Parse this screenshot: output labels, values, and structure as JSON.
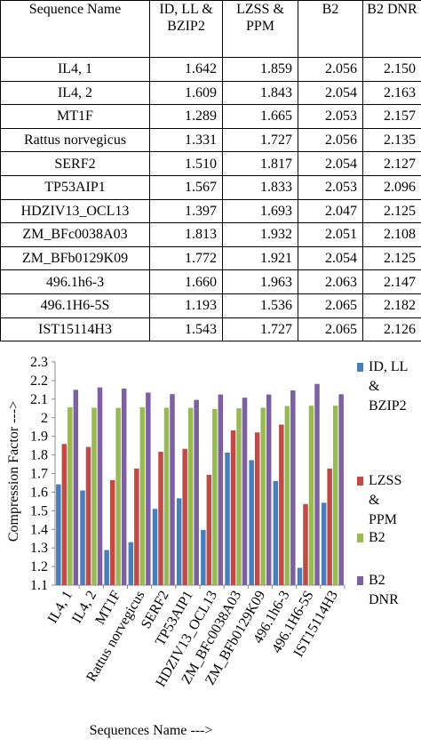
{
  "table": {
    "header": [
      "Sequence Name",
      "ID, LL & BZIP2",
      "LZSS & PPM",
      "B2",
      "B2 DNR"
    ],
    "rows": [
      [
        "IL4, 1",
        "1.642",
        "1.859",
        "2.056",
        "2.150"
      ],
      [
        "IL4, 2",
        "1.609",
        "1.843",
        "2.054",
        "2.163"
      ],
      [
        "MT1F",
        "1.289",
        "1.665",
        "2.053",
        "2.157"
      ],
      [
        "Rattus norvegicus",
        "1.331",
        "1.727",
        "2.056",
        "2.135"
      ],
      [
        "SERF2",
        "1.510",
        "1.817",
        "2.054",
        "2.127"
      ],
      [
        "TP53AIP1",
        "1.567",
        "1.833",
        "2.053",
        "2.096"
      ],
      [
        "HDZIV13_OCL13",
        "1.397",
        "1.693",
        "2.047",
        "2.125"
      ],
      [
        "ZM_BFc0038A03",
        "1.813",
        "1.932",
        "2.051",
        "2.108"
      ],
      [
        "ZM_BFb0129K09",
        "1.772",
        "1.921",
        "2.054",
        "2.125"
      ],
      [
        "496.1h6-3",
        "1.660",
        "1.963",
        "2.063",
        "2.147"
      ],
      [
        "496.1H6-5S",
        "1.193",
        "1.536",
        "2.065",
        "2.182"
      ],
      [
        "IST15114H3",
        "1.543",
        "1.727",
        "2.065",
        "2.126"
      ]
    ]
  },
  "chart_data": {
    "type": "bar",
    "x_label": "Sequences Name --->",
    "y_label": "Compression Factor --->",
    "categories": [
      "IL4, 1",
      "IL4, 2",
      "MT1F",
      "Rattus norvegicus",
      "SERF2",
      "TP53AIP1",
      "HDZIV13_OCL13",
      "ZM_BFc0038A03",
      "ZM_BFb0129K09",
      "496.1h6-3",
      "496.1H6-5S",
      "IST15114H3"
    ],
    "series": [
      {
        "name": "ID, LL & BZIP2",
        "color": "#4a7ebb",
        "values": [
          1.642,
          1.609,
          1.289,
          1.331,
          1.51,
          1.567,
          1.397,
          1.813,
          1.772,
          1.66,
          1.193,
          1.543
        ]
      },
      {
        "name": "LZSS & PPM",
        "color": "#be4b48",
        "values": [
          1.859,
          1.843,
          1.665,
          1.727,
          1.817,
          1.833,
          1.693,
          1.932,
          1.921,
          1.963,
          1.536,
          1.727
        ]
      },
      {
        "name": "B2",
        "color": "#98b954",
        "values": [
          2.056,
          2.054,
          2.053,
          2.056,
          2.054,
          2.053,
          2.047,
          2.051,
          2.054,
          2.063,
          2.065,
          2.065
        ]
      },
      {
        "name": "B2 DNR",
        "color": "#7d60a0",
        "values": [
          2.15,
          2.163,
          2.157,
          2.135,
          2.127,
          2.096,
          2.125,
          2.108,
          2.125,
          2.147,
          2.182,
          2.126
        ]
      }
    ],
    "ylim": [
      1.1,
      2.3
    ],
    "yticks": [
      1.1,
      1.2,
      1.3,
      1.4,
      1.5,
      1.6,
      1.7,
      1.8,
      1.9,
      2,
      2.1,
      2.2,
      2.3
    ],
    "legend": "right"
  }
}
